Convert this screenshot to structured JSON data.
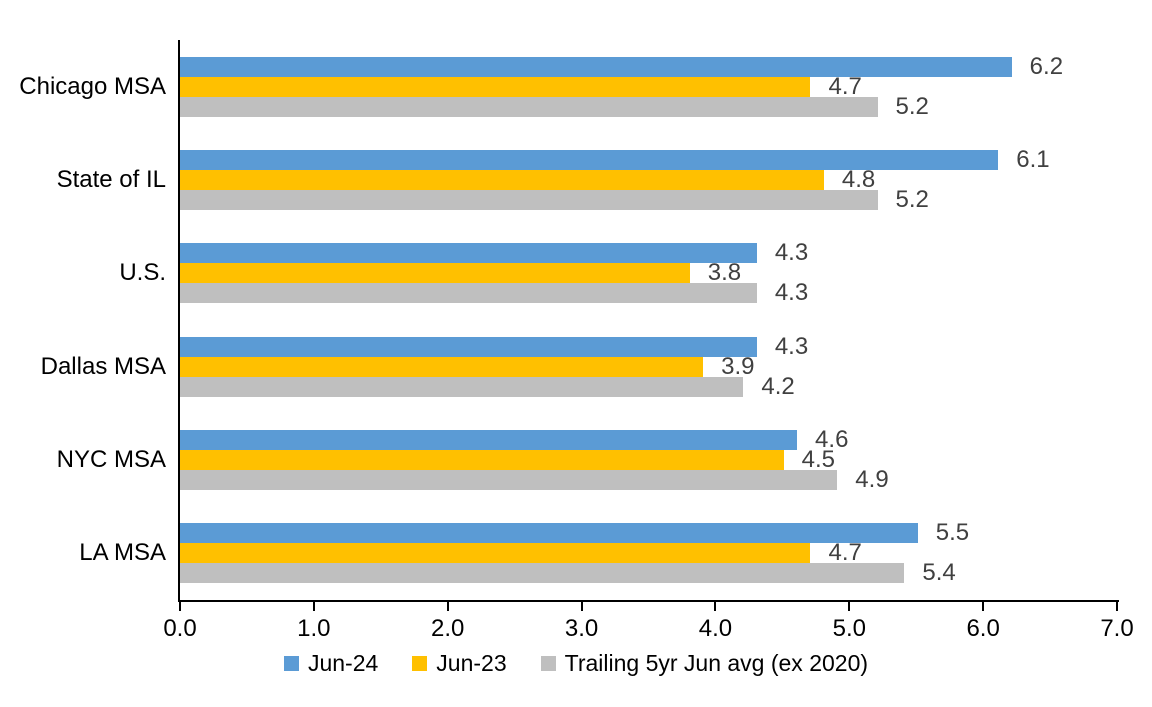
{
  "chart_data": {
    "type": "bar",
    "orientation": "horizontal",
    "categories": [
      "Chicago MSA",
      "State of IL",
      "U.S.",
      "Dallas MSA",
      "NYC MSA",
      "LA MSA"
    ],
    "series": [
      {
        "name": "Jun-24",
        "color": "#5B9BD5",
        "values": [
          6.2,
          6.1,
          4.3,
          4.3,
          4.6,
          5.5
        ]
      },
      {
        "name": "Jun-23",
        "color": "#FFC000",
        "values": [
          4.7,
          4.8,
          3.8,
          3.9,
          4.5,
          4.7
        ]
      },
      {
        "name": "Trailing 5yr Jun avg (ex 2020)",
        "color": "#BFBFBF",
        "values": [
          5.2,
          5.2,
          4.3,
          4.2,
          4.9,
          5.4
        ]
      }
    ],
    "xlim": [
      0,
      7
    ],
    "x_ticks": [
      "0.0",
      "1.0",
      "2.0",
      "3.0",
      "4.0",
      "5.0",
      "6.0",
      "7.0"
    ],
    "grid": false,
    "value_labels": true,
    "legend_position": "bottom",
    "colors": {
      "axis_line": "#000000",
      "value_label_text": "#404040",
      "axis_text": "#000000",
      "background": "#FFFFFF"
    }
  }
}
